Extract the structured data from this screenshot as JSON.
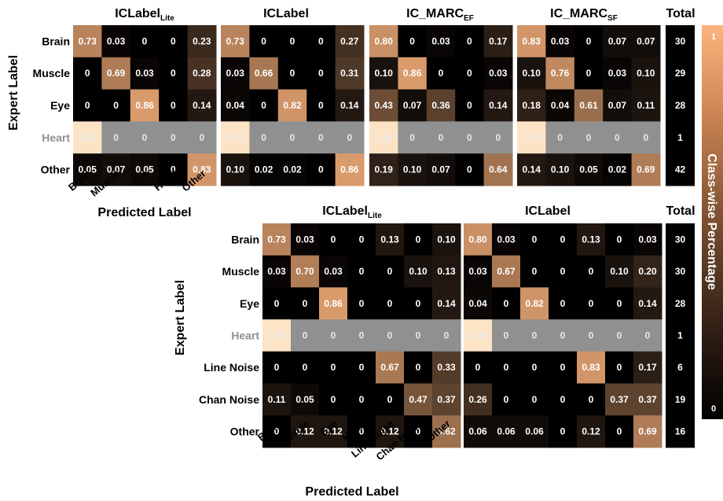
{
  "colorbar": {
    "label": "Class-wise Percentage",
    "min_label": "0",
    "max_label": "1",
    "color_low": "#000000",
    "color_high": "#fdb47e",
    "disabled_row_color": "#909090",
    "highlight_color": "#fde3c6"
  },
  "top": {
    "row_labels": [
      "Brain",
      "Muscle",
      "Eye",
      "Heart",
      "Other"
    ],
    "col_labels": [
      "Brain",
      "Muscle",
      "Eye",
      "Heart",
      "Other"
    ],
    "x_title": "Predicted Label",
    "y_title": "Expert Label",
    "total_title": "Total",
    "totals": [
      "30",
      "29",
      "28",
      "1",
      "42"
    ]
  },
  "bottom": {
    "row_labels": [
      "Brain",
      "Muscle",
      "Eye",
      "Heart",
      "Line Noise",
      "Chan Noise",
      "Other"
    ],
    "col_labels": [
      "Brain",
      "Muscle",
      "Eye",
      "Heart",
      "Line Noise",
      "Chan Noise",
      "Other"
    ],
    "x_title": "Predicted Label",
    "y_title": "Expert Label",
    "total_title": "Total",
    "totals": [
      "30",
      "30",
      "28",
      "1",
      "6",
      "19",
      "16"
    ]
  },
  "chart_data": [
    {
      "type": "heatmap",
      "title": "ICLabel",
      "title_sub": "Lite",
      "rows": [
        "Brain",
        "Muscle",
        "Eye",
        "Heart",
        "Other"
      ],
      "cols": [
        "Brain",
        "Muscle",
        "Eye",
        "Heart",
        "Other"
      ],
      "values": [
        [
          "0.73",
          "0.03",
          "0",
          "0",
          "0.23"
        ],
        [
          "0",
          "0.69",
          "0.03",
          "0",
          "0.28"
        ],
        [
          "0",
          "0",
          "0.86",
          "0",
          "0.14"
        ],
        [
          "1.00",
          "0",
          "0",
          "0",
          "0"
        ],
        [
          "0.05",
          "0.07",
          "0.05",
          "0",
          "0.83"
        ]
      ]
    },
    {
      "type": "heatmap",
      "title": "ICLabel",
      "title_sub": "",
      "rows": [
        "Brain",
        "Muscle",
        "Eye",
        "Heart",
        "Other"
      ],
      "cols": [
        "Brain",
        "Muscle",
        "Eye",
        "Heart",
        "Other"
      ],
      "values": [
        [
          "0.73",
          "0",
          "0",
          "0",
          "0.27"
        ],
        [
          "0.03",
          "0.66",
          "0",
          "0",
          "0.31"
        ],
        [
          "0.04",
          "0",
          "0.82",
          "0",
          "0.14"
        ],
        [
          "1.00",
          "0",
          "0",
          "0",
          "0"
        ],
        [
          "0.10",
          "0.02",
          "0.02",
          "0",
          "0.86"
        ]
      ]
    },
    {
      "type": "heatmap",
      "title": "IC_MARC",
      "title_sub": "EF",
      "rows": [
        "Brain",
        "Muscle",
        "Eye",
        "Heart",
        "Other"
      ],
      "cols": [
        "Brain",
        "Muscle",
        "Eye",
        "Heart",
        "Other"
      ],
      "values": [
        [
          "0.80",
          "0",
          "0.03",
          "0",
          "0.17"
        ],
        [
          "0.10",
          "0.86",
          "0",
          "0",
          "0.03"
        ],
        [
          "0.43",
          "0.07",
          "0.36",
          "0",
          "0.14"
        ],
        [
          "1.00",
          "0",
          "0",
          "0",
          "0"
        ],
        [
          "0.19",
          "0.10",
          "0.07",
          "0",
          "0.64"
        ]
      ]
    },
    {
      "type": "heatmap",
      "title": "IC_MARC",
      "title_sub": "SF",
      "rows": [
        "Brain",
        "Muscle",
        "Eye",
        "Heart",
        "Other"
      ],
      "cols": [
        "Brain",
        "Muscle",
        "Eye",
        "Heart",
        "Other"
      ],
      "values": [
        [
          "0.83",
          "0.03",
          "0",
          "0.07",
          "0.07"
        ],
        [
          "0.10",
          "0.76",
          "0",
          "0.03",
          "0.10"
        ],
        [
          "0.18",
          "0.04",
          "0.61",
          "0.07",
          "0.11"
        ],
        [
          "1.00",
          "0",
          "0",
          "0",
          "0"
        ],
        [
          "0.14",
          "0.10",
          "0.05",
          "0.02",
          "0.69"
        ]
      ]
    },
    {
      "type": "heatmap",
      "title": "ICLabel",
      "title_sub": "Lite",
      "rows": [
        "Brain",
        "Muscle",
        "Eye",
        "Heart",
        "Line Noise",
        "Chan Noise",
        "Other"
      ],
      "cols": [
        "Brain",
        "Muscle",
        "Eye",
        "Heart",
        "Line Noise",
        "Chan Noise",
        "Other"
      ],
      "values": [
        [
          "0.73",
          "0.03",
          "0",
          "0",
          "0.13",
          "0",
          "0.10"
        ],
        [
          "0.03",
          "0.70",
          "0.03",
          "0",
          "0",
          "0.10",
          "0.13"
        ],
        [
          "0",
          "0",
          "0.86",
          "0",
          "0",
          "0",
          "0.14"
        ],
        [
          "1.00",
          "0",
          "0",
          "0",
          "0",
          "0",
          "0"
        ],
        [
          "0",
          "0",
          "0",
          "0",
          "0.67",
          "0",
          "0.33"
        ],
        [
          "0.11",
          "0.05",
          "0",
          "0",
          "0",
          "0.47",
          "0.37"
        ],
        [
          "0",
          "0.12",
          "0.12",
          "0",
          "0.12",
          "0",
          "0.62"
        ]
      ]
    },
    {
      "type": "heatmap",
      "title": "ICLabel",
      "title_sub": "",
      "rows": [
        "Brain",
        "Muscle",
        "Eye",
        "Heart",
        "Line Noise",
        "Chan Noise",
        "Other"
      ],
      "cols": [
        "Brain",
        "Muscle",
        "Eye",
        "Heart",
        "Line Noise",
        "Chan Noise",
        "Other"
      ],
      "values": [
        [
          "0.80",
          "0.03",
          "0",
          "0",
          "0.13",
          "0",
          "0.03"
        ],
        [
          "0.03",
          "0.67",
          "0",
          "0",
          "0",
          "0.10",
          "0.20"
        ],
        [
          "0.04",
          "0",
          "0.82",
          "0",
          "0",
          "0",
          "0.14"
        ],
        [
          "1.00",
          "0",
          "0",
          "0",
          "0",
          "0",
          "0"
        ],
        [
          "0",
          "0",
          "0",
          "0",
          "0.83",
          "0",
          "0.17"
        ],
        [
          "0.26",
          "0",
          "0",
          "0",
          "0",
          "0.37",
          "0.37"
        ],
        [
          "0.06",
          "0.06",
          "0.06",
          "0",
          "0.12",
          "0",
          "0.69"
        ]
      ]
    }
  ]
}
